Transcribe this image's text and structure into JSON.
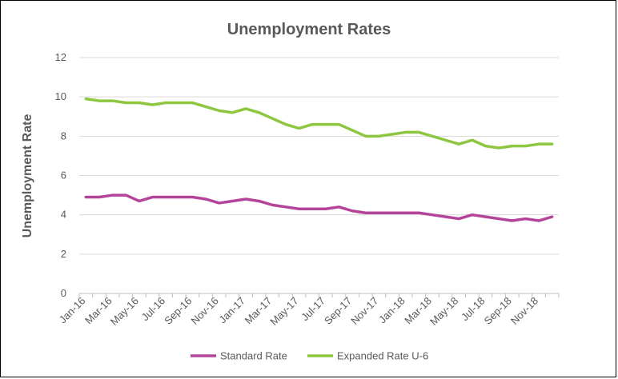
{
  "chart_data": {
    "type": "line",
    "title": "Unemployment Rates",
    "xlabel": "",
    "ylabel": "Unemployment Rate",
    "ylim": [
      0,
      12
    ],
    "yticks": [
      0,
      2,
      4,
      6,
      8,
      10,
      12
    ],
    "grid": true,
    "legend_position": "bottom",
    "x": [
      "Jan-16",
      "Feb-16",
      "Mar-16",
      "Apr-16",
      "May-16",
      "Jun-16",
      "Jul-16",
      "Aug-16",
      "Sep-16",
      "Oct-16",
      "Nov-16",
      "Dec-16",
      "Jan-17",
      "Feb-17",
      "Mar-17",
      "Apr-17",
      "May-17",
      "Jun-17",
      "Jul-17",
      "Aug-17",
      "Sep-17",
      "Oct-17",
      "Nov-17",
      "Dec-17",
      "Jan-18",
      "Feb-18",
      "Mar-18",
      "Apr-18",
      "May-18",
      "Jun-18",
      "Jul-18",
      "Aug-18",
      "Sep-18",
      "Oct-18",
      "Nov-18",
      "Dec-18"
    ],
    "xtick_labels": [
      "Jan-16",
      "Mar-16",
      "May-16",
      "Jul-16",
      "Sep-16",
      "Nov-16",
      "Jan-17",
      "Mar-17",
      "May-17",
      "Jul-17",
      "Sep-17",
      "Nov-17",
      "Jan-18",
      "Mar-18",
      "May-18",
      "Jul-18",
      "Sep-18",
      "Nov-18"
    ],
    "series": [
      {
        "name": "Standard Rate",
        "color": "#b4449a",
        "values": [
          4.9,
          4.9,
          5.0,
          5.0,
          4.7,
          4.9,
          4.9,
          4.9,
          4.9,
          4.8,
          4.6,
          4.7,
          4.8,
          4.7,
          4.5,
          4.4,
          4.3,
          4.3,
          4.3,
          4.4,
          4.2,
          4.1,
          4.1,
          4.1,
          4.1,
          4.1,
          4.0,
          3.9,
          3.8,
          4.0,
          3.9,
          3.8,
          3.7,
          3.8,
          3.7,
          3.9
        ]
      },
      {
        "name": "Expanded Rate U-6",
        "color": "#8dc63f",
        "values": [
          9.9,
          9.8,
          9.8,
          9.7,
          9.7,
          9.6,
          9.7,
          9.7,
          9.7,
          9.5,
          9.3,
          9.2,
          9.4,
          9.2,
          8.9,
          8.6,
          8.4,
          8.6,
          8.6,
          8.6,
          8.3,
          8.0,
          8.0,
          8.1,
          8.2,
          8.2,
          8.0,
          7.8,
          7.6,
          7.8,
          7.5,
          7.4,
          7.5,
          7.5,
          7.6,
          7.6
        ]
      }
    ]
  }
}
